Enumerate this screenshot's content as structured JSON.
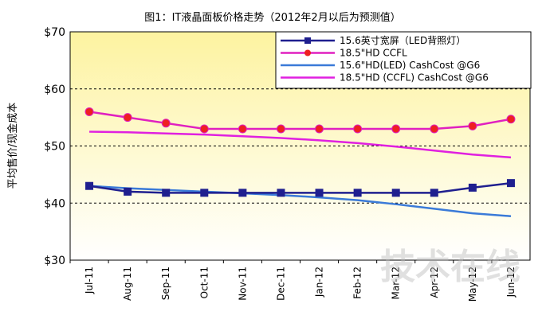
{
  "chart_data": {
    "type": "line",
    "title": "图1：IT液晶面板价格走势（2012年2月以后为预测值）",
    "xlabel": "",
    "ylabel": "平均售价/现金成本",
    "ylim": [
      30,
      70
    ],
    "yticks": [
      "$30",
      "$40",
      "$50",
      "$60",
      "$70"
    ],
    "grid": "dashed horizontal",
    "legend_position": "top-right",
    "categories": [
      "Jul-11",
      "Aug-11",
      "Sep-11",
      "Oct-11",
      "Nov-11",
      "Dec-11",
      "Jan-12",
      "Feb-12",
      "Mar-12",
      "Apr-12",
      "May-12",
      "Jun-12"
    ],
    "series": [
      {
        "name": "15.6英寸宽屏（LED背照灯）",
        "color": "#1f1f8f",
        "marker": "square",
        "values": [
          43,
          42,
          41.8,
          41.8,
          41.8,
          41.8,
          41.8,
          41.8,
          41.8,
          41.8,
          42.7,
          43.5
        ]
      },
      {
        "name": "18.5\"HD CCFL",
        "color": "#e020c0",
        "marker": "dot",
        "values": [
          56,
          55,
          54,
          53,
          53,
          53,
          53,
          53,
          53,
          53,
          53.5,
          54.7
        ]
      },
      {
        "name": "15.6\"HD(LED) CashCost @G6",
        "color": "#3a7ad8",
        "marker": "none",
        "values": [
          43,
          42.6,
          42.3,
          42,
          41.7,
          41.4,
          41,
          40.5,
          39.8,
          39,
          38.2,
          37.7
        ]
      },
      {
        "name": "18.5\"HD (CCFL) CashCost @G6",
        "color": "#e020e0",
        "marker": "none",
        "values": [
          52.5,
          52.4,
          52.2,
          52,
          51.7,
          51.4,
          51,
          50.5,
          49.9,
          49.2,
          48.5,
          48
        ]
      }
    ]
  },
  "watermark": "技术在线"
}
